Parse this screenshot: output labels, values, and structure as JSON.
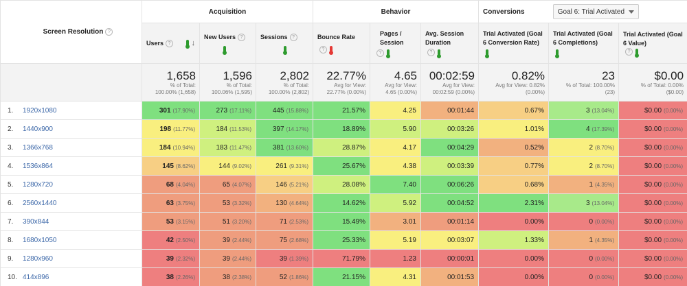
{
  "header_groups": {
    "acquisition": "Acquisition",
    "behavior": "Behavior",
    "conversions": "Conversions",
    "goal_select": "Goal 6: Trial Activated"
  },
  "dimension_header": "Screen Resolution",
  "columns": {
    "users": "Users",
    "new_users": "New Users",
    "sessions": "Sessions",
    "bounce_rate": "Bounce Rate",
    "pages_session": "Pages / Session",
    "avg_duration": "Avg. Session Duration",
    "conv_rate": "Trial Activated (Goal 6 Conversion Rate)",
    "completions": "Trial Activated (Goal 6 Completions)",
    "value": "Trial Activated (Goal 6 Value)"
  },
  "totals": {
    "users": {
      "big": "1,658",
      "sub1": "% of Total:",
      "sub2": "100.00% (1,658)"
    },
    "new_users": {
      "big": "1,596",
      "sub1": "% of Total:",
      "sub2": "100.06% (1,595)"
    },
    "sessions": {
      "big": "2,802",
      "sub1": "% of Total:",
      "sub2": "100.00% (2,802)"
    },
    "bounce_rate": {
      "big": "22.77%",
      "sub1": "Avg for View:",
      "sub2": "22.77% (0.00%)"
    },
    "pages_session": {
      "big": "4.65",
      "sub1": "Avg for View:",
      "sub2": "4.65 (0.00%)"
    },
    "avg_duration": {
      "big": "00:02:59",
      "sub1": "Avg for View:",
      "sub2": "00:02:59 (0.00%)"
    },
    "conv_rate": {
      "big": "0.82%",
      "sub1": "Avg for View: 0.82%",
      "sub2": "(0.00%)"
    },
    "completions": {
      "big": "23",
      "sub1": "% of Total: 100.00%",
      "sub2": "(23)"
    },
    "value": {
      "big": "$0.00",
      "sub1": "% of Total: 0.00%",
      "sub2": "($0.00)"
    }
  },
  "colors": {
    "green": "#7fe07f",
    "lightgreen": "#a8ea8a",
    "lime": "#cff07f",
    "yellow": "#f9ef7f",
    "lightorange": "#f7cf84",
    "orange": "#f2b17f",
    "salmon": "#ef9d7e",
    "red": "#ee7f7f"
  },
  "rows": [
    {
      "rank": "1.",
      "res": "1920x1080",
      "users": "301",
      "users_pct": "(17.90%)",
      "new_users": "273",
      "new_pct": "(17.11%)",
      "sessions": "445",
      "sess_pct": "(15.88%)",
      "bounce": "21.57%",
      "pages": "4.25",
      "duration": "00:01:44",
      "conv_rate": "0.67%",
      "completions": "3",
      "comp_pct": "(13.04%)",
      "value": "$0.00",
      "value_pct": "(0.00%)",
      "cu": "green",
      "cn": "green",
      "cs": "green",
      "cb": "green",
      "cp": "yellow",
      "cd": "orange",
      "cc": "lightorange",
      "ccm": "lightgreen",
      "cv": "red"
    },
    {
      "rank": "2.",
      "res": "1440x900",
      "users": "198",
      "users_pct": "(11.77%)",
      "new_users": "184",
      "new_pct": "(11.53%)",
      "sessions": "397",
      "sess_pct": "(14.17%)",
      "bounce": "18.89%",
      "pages": "5.90",
      "duration": "00:03:26",
      "conv_rate": "1.01%",
      "completions": "4",
      "comp_pct": "(17.39%)",
      "value": "$0.00",
      "value_pct": "(0.00%)",
      "cu": "yellow",
      "cn": "lime",
      "cs": "green",
      "cb": "green",
      "cp": "lime",
      "cd": "lime",
      "cc": "yellow",
      "ccm": "green",
      "cv": "red"
    },
    {
      "rank": "3.",
      "res": "1366x768",
      "users": "184",
      "users_pct": "(10.94%)",
      "new_users": "183",
      "new_pct": "(11.47%)",
      "sessions": "381",
      "sess_pct": "(13.60%)",
      "bounce": "28.87%",
      "pages": "4.17",
      "duration": "00:04:29",
      "conv_rate": "0.52%",
      "completions": "2",
      "comp_pct": "(8.70%)",
      "value": "$0.00",
      "value_pct": "(0.00%)",
      "cu": "yellow",
      "cn": "lime",
      "cs": "green",
      "cb": "lime",
      "cp": "yellow",
      "cd": "green",
      "cc": "orange",
      "ccm": "yellow",
      "cv": "red"
    },
    {
      "rank": "4.",
      "res": "1536x864",
      "users": "145",
      "users_pct": "(8.62%)",
      "new_users": "144",
      "new_pct": "(9.02%)",
      "sessions": "261",
      "sess_pct": "(9.31%)",
      "bounce": "25.67%",
      "pages": "4.38",
      "duration": "00:03:39",
      "conv_rate": "0.77%",
      "completions": "2",
      "comp_pct": "(8.70%)",
      "value": "$0.00",
      "value_pct": "(0.00%)",
      "cu": "lightorange",
      "cn": "yellow",
      "cs": "yellow",
      "cb": "green",
      "cp": "yellow",
      "cd": "lime",
      "cc": "lightorange",
      "ccm": "yellow",
      "cv": "red"
    },
    {
      "rank": "5.",
      "res": "1280x720",
      "users": "68",
      "users_pct": "(4.04%)",
      "new_users": "65",
      "new_pct": "(4.07%)",
      "sessions": "146",
      "sess_pct": "(5.21%)",
      "bounce": "28.08%",
      "pages": "7.40",
      "duration": "00:06:26",
      "conv_rate": "0.68%",
      "completions": "1",
      "comp_pct": "(4.35%)",
      "value": "$0.00",
      "value_pct": "(0.00%)",
      "cu": "salmon",
      "cn": "salmon",
      "cs": "lightorange",
      "cb": "lime",
      "cp": "green",
      "cd": "green",
      "cc": "lightorange",
      "ccm": "orange",
      "cv": "red"
    },
    {
      "rank": "6.",
      "res": "2560x1440",
      "users": "63",
      "users_pct": "(3.75%)",
      "new_users": "53",
      "new_pct": "(3.32%)",
      "sessions": "130",
      "sess_pct": "(4.64%)",
      "bounce": "14.62%",
      "pages": "5.92",
      "duration": "00:04:52",
      "conv_rate": "2.31%",
      "completions": "3",
      "comp_pct": "(13.04%)",
      "value": "$0.00",
      "value_pct": "(0.00%)",
      "cu": "salmon",
      "cn": "salmon",
      "cs": "orange",
      "cb": "green",
      "cp": "lime",
      "cd": "green",
      "cc": "green",
      "ccm": "lightgreen",
      "cv": "red"
    },
    {
      "rank": "7.",
      "res": "390x844",
      "users": "53",
      "users_pct": "(3.15%)",
      "new_users": "51",
      "new_pct": "(3.20%)",
      "sessions": "71",
      "sess_pct": "(2.53%)",
      "bounce": "15.49%",
      "pages": "3.01",
      "duration": "00:01:14",
      "conv_rate": "0.00%",
      "completions": "0",
      "comp_pct": "(0.00%)",
      "value": "$0.00",
      "value_pct": "(0.00%)",
      "cu": "salmon",
      "cn": "salmon",
      "cs": "salmon",
      "cb": "green",
      "cp": "orange",
      "cd": "salmon",
      "cc": "red",
      "ccm": "red",
      "cv": "red"
    },
    {
      "rank": "8.",
      "res": "1680x1050",
      "users": "42",
      "users_pct": "(2.50%)",
      "new_users": "39",
      "new_pct": "(2.44%)",
      "sessions": "75",
      "sess_pct": "(2.68%)",
      "bounce": "25.33%",
      "pages": "5.19",
      "duration": "00:03:07",
      "conv_rate": "1.33%",
      "completions": "1",
      "comp_pct": "(4.35%)",
      "value": "$0.00",
      "value_pct": "(0.00%)",
      "cu": "red",
      "cn": "salmon",
      "cs": "salmon",
      "cb": "green",
      "cp": "yellow",
      "cd": "yellow",
      "cc": "lime",
      "ccm": "orange",
      "cv": "red"
    },
    {
      "rank": "9.",
      "res": "1280x960",
      "users": "39",
      "users_pct": "(2.32%)",
      "new_users": "39",
      "new_pct": "(2.44%)",
      "sessions": "39",
      "sess_pct": "(1.39%)",
      "bounce": "71.79%",
      "pages": "1.23",
      "duration": "00:00:01",
      "conv_rate": "0.00%",
      "completions": "0",
      "comp_pct": "(0.00%)",
      "value": "$0.00",
      "value_pct": "(0.00%)",
      "cu": "red",
      "cn": "salmon",
      "cs": "red",
      "cb": "red",
      "cp": "red",
      "cd": "red",
      "cc": "red",
      "ccm": "red",
      "cv": "red"
    },
    {
      "rank": "10.",
      "res": "414x896",
      "users": "38",
      "users_pct": "(2.26%)",
      "new_users": "38",
      "new_pct": "(2.38%)",
      "sessions": "52",
      "sess_pct": "(1.86%)",
      "bounce": "21.15%",
      "pages": "4.31",
      "duration": "00:01:53",
      "conv_rate": "0.00%",
      "completions": "0",
      "comp_pct": "(0.00%)",
      "value": "$0.00",
      "value_pct": "(0.00%)",
      "cu": "red",
      "cn": "salmon",
      "cs": "salmon",
      "cb": "green",
      "cp": "yellow",
      "cd": "orange",
      "cc": "red",
      "ccm": "red",
      "cv": "red"
    }
  ]
}
